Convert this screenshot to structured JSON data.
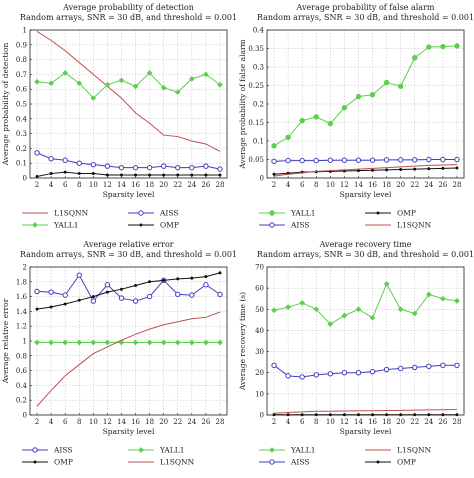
{
  "chart_data": [
    {
      "type": "line",
      "title": "Average probability of detection",
      "subtitle": "Random arrays, SNR = 30 dB, and threshold = 0.001",
      "xlabel": "Sparsity level",
      "ylabel": "Average probability of detection",
      "x": [
        2,
        4,
        6,
        8,
        10,
        12,
        14,
        16,
        18,
        20,
        22,
        24,
        26,
        28
      ],
      "xticks": [
        2,
        4,
        6,
        8,
        10,
        12,
        14,
        16,
        18,
        20,
        22,
        24,
        26,
        28
      ],
      "ylim": [
        0,
        1
      ],
      "yticks": [
        0,
        0.1,
        0.2,
        0.3,
        0.4,
        0.5,
        0.6,
        0.7,
        0.8,
        0.9,
        1
      ],
      "ytick_labels": [
        "0",
        "0.1",
        "0.2",
        "0.3",
        "0.4",
        "0.5",
        "0.6",
        "0.7",
        "0.8",
        "0.9",
        "1"
      ],
      "grid": true,
      "legend_cols": [
        [
          "L1SQNN",
          "YALL1"
        ],
        [
          "AISS",
          "OMP"
        ]
      ],
      "series": [
        {
          "name": "L1SQNN",
          "color": "#c0504d",
          "marker": "none",
          "values": [
            0.99,
            0.93,
            0.86,
            0.78,
            0.7,
            0.62,
            0.54,
            0.44,
            0.37,
            0.29,
            0.28,
            0.25,
            0.23,
            0.18
          ]
        },
        {
          "name": "YALL1",
          "color": "#5ccf4e",
          "marker": "diamond",
          "values": [
            0.65,
            0.64,
            0.71,
            0.64,
            0.54,
            0.63,
            0.66,
            0.62,
            0.71,
            0.61,
            0.58,
            0.67,
            0.7,
            0.63
          ]
        },
        {
          "name": "AISS",
          "color": "#3f3fbf",
          "marker": "circle",
          "values": [
            0.17,
            0.13,
            0.12,
            0.1,
            0.09,
            0.08,
            0.07,
            0.07,
            0.07,
            0.08,
            0.07,
            0.07,
            0.08,
            0.06
          ]
        },
        {
          "name": "OMP",
          "color": "#111111",
          "marker": "dot",
          "values": [
            0.01,
            0.03,
            0.04,
            0.03,
            0.03,
            0.02,
            0.02,
            0.02,
            0.02,
            0.02,
            0.02,
            0.02,
            0.02,
            0.02
          ]
        }
      ]
    },
    {
      "type": "line",
      "title": "Average probability of false alarm",
      "subtitle": "Random arrays, SNR = 30 dB, and threshold = 0.001",
      "xlabel": "Sparsity level",
      "ylabel": "Average probability of false alarm",
      "x": [
        2,
        4,
        6,
        8,
        10,
        12,
        14,
        16,
        18,
        20,
        22,
        24,
        26,
        28
      ],
      "xticks": [
        2,
        4,
        6,
        8,
        10,
        12,
        14,
        16,
        18,
        20,
        22,
        24,
        26,
        28
      ],
      "ylim": [
        0,
        0.4
      ],
      "yticks": [
        0,
        0.05,
        0.1,
        0.15,
        0.2,
        0.25,
        0.3,
        0.35,
        0.4
      ],
      "ytick_labels": [
        "0",
        "0.05",
        "0.1",
        "0.15",
        "0.2",
        "0.25",
        "0.3",
        "0.35",
        "0.4"
      ],
      "grid": true,
      "legend_cols": [
        [
          "YALL1",
          "AISS"
        ],
        [
          "OMP",
          "L1SQNN"
        ]
      ],
      "series": [
        {
          "name": "YALL1",
          "color": "#5ccf4e",
          "marker": "circle-filled",
          "values": [
            0.087,
            0.11,
            0.155,
            0.165,
            0.147,
            0.19,
            0.22,
            0.225,
            0.258,
            0.248,
            0.325,
            0.354,
            0.355,
            0.357
          ]
        },
        {
          "name": "AISS",
          "color": "#3f3fbf",
          "marker": "circle",
          "values": [
            0.045,
            0.047,
            0.047,
            0.047,
            0.048,
            0.048,
            0.048,
            0.048,
            0.049,
            0.049,
            0.049,
            0.05,
            0.05,
            0.05
          ]
        },
        {
          "name": "OMP",
          "color": "#111111",
          "marker": "dot",
          "values": [
            0.01,
            0.013,
            0.016,
            0.017,
            0.018,
            0.019,
            0.02,
            0.021,
            0.022,
            0.023,
            0.024,
            0.025,
            0.026,
            0.027
          ]
        },
        {
          "name": "L1SQNN",
          "color": "#c0504d",
          "marker": "none",
          "values": [
            0.005,
            0.01,
            0.014,
            0.018,
            0.02,
            0.022,
            0.024,
            0.026,
            0.028,
            0.03,
            0.032,
            0.034,
            0.035,
            0.036
          ]
        }
      ]
    },
    {
      "type": "line",
      "title": "Average relative error",
      "subtitle": "Random arrays, SNR = 30 dB, and threshold = 0.001",
      "xlabel": "Sparsity level",
      "ylabel": "Average relative error",
      "x": [
        2,
        4,
        6,
        8,
        10,
        12,
        14,
        16,
        18,
        20,
        22,
        24,
        26,
        28
      ],
      "xticks": [
        2,
        4,
        6,
        8,
        10,
        12,
        14,
        16,
        18,
        20,
        22,
        24,
        26,
        28
      ],
      "ylim": [
        0,
        2
      ],
      "yticks": [
        0,
        0.2,
        0.4,
        0.6,
        0.8,
        1,
        1.2,
        1.4,
        1.6,
        1.8,
        2
      ],
      "ytick_labels": [
        "0",
        "0.2",
        "0.4",
        "0.6",
        "0.8",
        "1",
        "1.2",
        "1.4",
        "1.6",
        "1.8",
        "2"
      ],
      "grid": true,
      "legend_cols": [
        [
          "AISS",
          "OMP"
        ],
        [
          "YALL1",
          "L1SQNN"
        ]
      ],
      "series": [
        {
          "name": "AISS",
          "color": "#3f3fbf",
          "marker": "circle",
          "values": [
            1.67,
            1.66,
            1.62,
            1.89,
            1.54,
            1.76,
            1.58,
            1.54,
            1.6,
            1.82,
            1.63,
            1.62,
            1.76,
            1.63
          ]
        },
        {
          "name": "OMP",
          "color": "#111111",
          "marker": "dot",
          "values": [
            1.43,
            1.46,
            1.5,
            1.55,
            1.6,
            1.66,
            1.7,
            1.75,
            1.8,
            1.82,
            1.84,
            1.85,
            1.87,
            1.92
          ]
        },
        {
          "name": "YALL1",
          "color": "#5ccf4e",
          "marker": "diamond",
          "values": [
            0.98,
            0.98,
            0.98,
            0.98,
            0.98,
            0.98,
            0.98,
            0.98,
            0.98,
            0.98,
            0.98,
            0.98,
            0.98,
            0.98
          ]
        },
        {
          "name": "L1SQNN",
          "color": "#c0504d",
          "marker": "none",
          "values": [
            0.12,
            0.33,
            0.53,
            0.68,
            0.83,
            0.92,
            1.01,
            1.09,
            1.16,
            1.22,
            1.26,
            1.3,
            1.32,
            1.39
          ]
        }
      ]
    },
    {
      "type": "line",
      "title": "Average recovery time",
      "subtitle": "Random arrays, SNR = 30 dB, and threshold = 0.001",
      "xlabel": "Sparsity level",
      "ylabel": "Average recovery time (s)",
      "x": [
        2,
        4,
        6,
        8,
        10,
        12,
        14,
        16,
        18,
        20,
        22,
        24,
        26,
        28
      ],
      "xticks": [
        2,
        4,
        6,
        8,
        10,
        12,
        14,
        16,
        18,
        20,
        22,
        24,
        26,
        28
      ],
      "ylim": [
        0,
        70
      ],
      "yticks": [
        0,
        10,
        20,
        30,
        40,
        50,
        60,
        70
      ],
      "ytick_labels": [
        "0",
        "10",
        "20",
        "30",
        "40",
        "50",
        "60",
        "70"
      ],
      "grid": true,
      "legend_cols": [
        [
          "YALL1",
          "AISS"
        ],
        [
          "L1SQNN",
          "OMP"
        ]
      ],
      "series": [
        {
          "name": "YALL1",
          "color": "#5ccf4e",
          "marker": "diamond",
          "values": [
            49.5,
            51,
            53,
            50,
            43,
            47,
            50,
            46,
            62,
            50,
            48,
            57,
            55,
            54
          ]
        },
        {
          "name": "AISS",
          "color": "#3f3fbf",
          "marker": "circle",
          "values": [
            23.5,
            18.5,
            18,
            19,
            19.5,
            20,
            20,
            20.5,
            21.5,
            22,
            22.5,
            23,
            23.5,
            23.5
          ]
        },
        {
          "name": "L1SQNN",
          "color": "#c0504d",
          "marker": "none",
          "values": [
            0.8,
            1.2,
            1.5,
            1.8,
            1.8,
            1.9,
            2.0,
            2.0,
            2.1,
            2.2,
            2.3,
            2.4,
            2.5,
            2.6
          ]
        },
        {
          "name": "OMP",
          "color": "#111111",
          "marker": "dot",
          "values": [
            0.1,
            0.1,
            0.1,
            0.1,
            0.1,
            0.1,
            0.1,
            0.1,
            0.1,
            0.1,
            0.1,
            0.1,
            0.1,
            0.1
          ]
        }
      ]
    }
  ]
}
